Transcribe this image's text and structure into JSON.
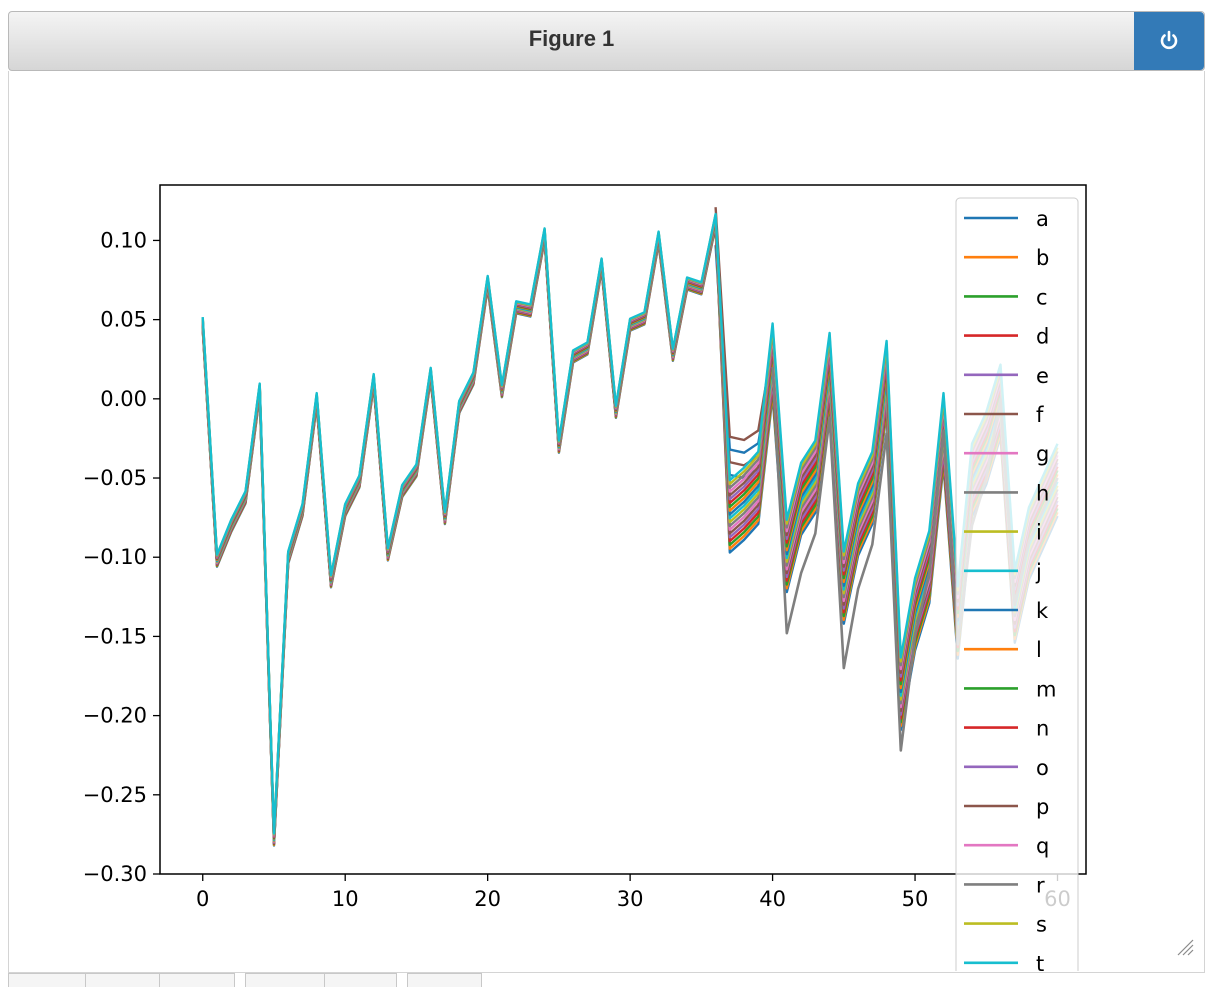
{
  "window": {
    "title": "Figure 1"
  },
  "icons": {
    "close": "power-icon",
    "resize": "resize-grip-icon"
  },
  "chart_data": {
    "type": "line",
    "title": "",
    "xlabel": "",
    "ylabel": "",
    "xlim": [
      -3,
      62
    ],
    "ylim": [
      -0.3,
      0.135
    ],
    "xticks": [
      0,
      10,
      20,
      30,
      40,
      50,
      60
    ],
    "xtick_labels": [
      "0",
      "10",
      "20",
      "30",
      "40",
      "50",
      "60"
    ],
    "yticks": [
      0.1,
      0.05,
      0.0,
      -0.05,
      -0.1,
      -0.15,
      -0.2,
      -0.25,
      -0.3
    ],
    "ytick_labels": [
      "0.10",
      "0.05",
      "0.00",
      "−0.05",
      "−0.10",
      "−0.15",
      "−0.20",
      "−0.25",
      "−0.30"
    ],
    "legend": {
      "position": "right",
      "entries": [
        "a",
        "b",
        "c",
        "d",
        "e",
        "f",
        "g",
        "h",
        "i",
        "j",
        "k",
        "l",
        "m",
        "n",
        "o",
        "p",
        "q",
        "r",
        "s",
        "t"
      ]
    },
    "colors": [
      "#1f77b4",
      "#ff7f0e",
      "#2ca02c",
      "#d62728",
      "#9467bd",
      "#8c564b",
      "#e377c2",
      "#7f7f7f",
      "#bcbd22",
      "#17becf"
    ],
    "x": [
      0,
      1,
      2,
      3,
      4,
      5,
      6,
      7,
      8,
      9,
      10,
      11,
      12,
      13,
      14,
      15,
      16,
      17,
      18,
      19,
      20,
      21,
      22,
      23,
      24,
      25,
      26,
      27,
      28,
      29,
      30,
      31,
      32,
      33,
      34,
      35,
      36,
      37,
      38,
      39,
      40,
      41,
      42,
      43,
      44,
      45,
      46,
      47,
      48,
      49,
      50,
      51,
      52,
      53,
      54,
      55,
      56,
      57,
      58,
      59,
      60
    ],
    "base_series": [
      0.048,
      -0.102,
      -0.08,
      -0.062,
      0.006,
      -0.278,
      -0.1,
      -0.07,
      0.0,
      -0.115,
      -0.07,
      -0.052,
      0.012,
      -0.098,
      -0.058,
      -0.045,
      0.016,
      -0.075,
      -0.005,
      0.013,
      0.074,
      0.005,
      0.058,
      0.056,
      0.104,
      -0.03,
      0.027,
      0.032,
      0.085,
      -0.008,
      0.047,
      0.051,
      0.102,
      0.028,
      0.073,
      0.07,
      0.113,
      -0.073,
      -0.065,
      -0.055,
      0.026,
      -0.098,
      -0.062,
      -0.048,
      0.02,
      -0.118,
      -0.075,
      -0.055,
      0.015,
      -0.185,
      -0.135,
      -0.105,
      -0.018,
      -0.14,
      -0.05,
      -0.03,
      0.0,
      -0.13,
      -0.09,
      -0.07,
      -0.05
    ],
    "upper_band": [
      null,
      null,
      null,
      null,
      null,
      null,
      null,
      null,
      null,
      null,
      null,
      null,
      null,
      null,
      null,
      null,
      null,
      null,
      null,
      null,
      null,
      null,
      null,
      null,
      null,
      null,
      null,
      null,
      null,
      null,
      null,
      null,
      null,
      null,
      null,
      null,
      0.113,
      -0.032,
      -0.034,
      -0.028,
      0.026
    ],
    "series_h": [
      null,
      null,
      null,
      null,
      null,
      null,
      null,
      null,
      null,
      null,
      null,
      null,
      null,
      null,
      null,
      null,
      null,
      null,
      null,
      null,
      null,
      null,
      null,
      null,
      null,
      null,
      null,
      null,
      null,
      null,
      null,
      null,
      null,
      null,
      null,
      null,
      null,
      null,
      null,
      null,
      0.02,
      -0.148,
      -0.11,
      -0.085,
      -0.012,
      -0.17,
      -0.12,
      -0.092,
      -0.022,
      -0.222,
      -0.15,
      -0.11,
      -0.02,
      -0.155,
      -0.08,
      -0.05,
      0.0,
      -0.13,
      -0.09,
      -0.07,
      -0.05
    ]
  }
}
